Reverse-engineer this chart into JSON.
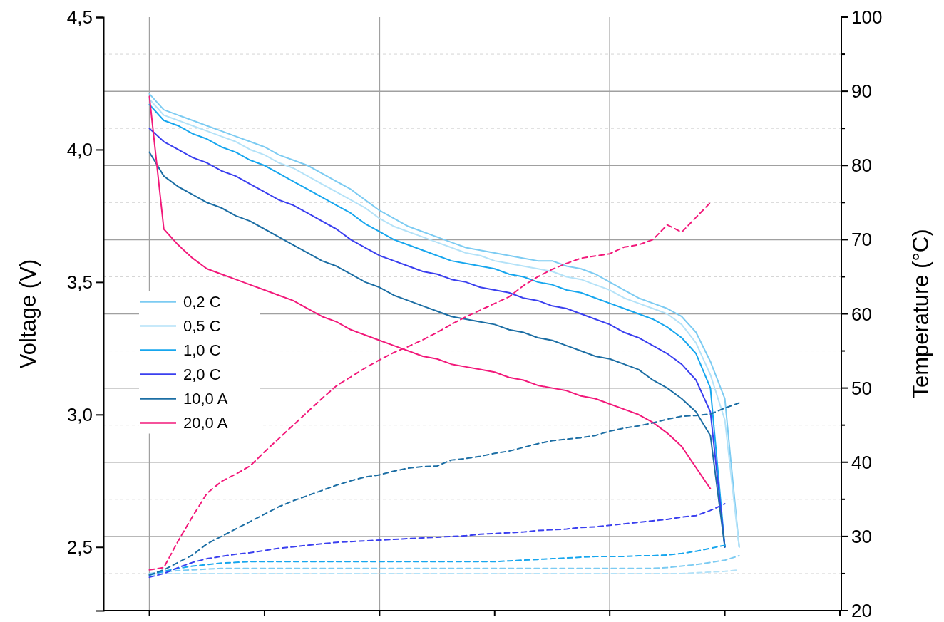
{
  "chart_data": {
    "type": "line",
    "xlabel": null,
    "ylabel": "Voltage (V)",
    "y2label": "Temperature (°C)",
    "categories": [
      null,
      null,
      null,
      null,
      null,
      null,
      null,
      null,
      null,
      null,
      null,
      null,
      null,
      null,
      null,
      null,
      null,
      null,
      null,
      null,
      null,
      null,
      null,
      null,
      null,
      null,
      null,
      null,
      null,
      null,
      null,
      null,
      null,
      null,
      null,
      null,
      null,
      null,
      null,
      null,
      null,
      null,
      null,
      null,
      null,
      null,
      null,
      null,
      null
    ],
    "ylim": [
      2.26,
      4.5
    ],
    "yticks": [
      {
        "value": 2.5,
        "label": "2,5"
      },
      {
        "value": 3.0,
        "label": "3,0"
      },
      {
        "value": 3.5,
        "label": "3,5"
      },
      {
        "value": 4.0,
        "label": "4,0"
      },
      {
        "value": 4.5,
        "label": "4,5"
      }
    ],
    "y2lim": [
      20,
      100
    ],
    "y2ticks": [
      20,
      {
        "value": 25,
        "label": null
      },
      30,
      {
        "value": 35,
        "label": null
      },
      40,
      {
        "value": 45,
        "label": null
      },
      50,
      {
        "value": 55,
        "label": null
      },
      60,
      {
        "value": 65,
        "label": null
      },
      70,
      {
        "value": 75,
        "label": null
      },
      80,
      {
        "value": 85,
        "label": null
      },
      90,
      {
        "value": 95,
        "label": null
      },
      100
    ],
    "grid": true,
    "legend": "left",
    "series": [
      {
        "name": "0,2 C",
        "color": "#7ccbf2",
        "values": [
          4.21,
          4.15,
          4.13,
          4.11,
          4.09,
          4.07,
          4.05,
          4.03,
          4.01,
          3.98,
          3.96,
          3.94,
          3.91,
          3.88,
          3.85,
          3.81,
          3.77,
          3.74,
          3.71,
          3.69,
          3.67,
          3.65,
          3.63,
          3.62,
          3.61,
          3.6,
          3.59,
          3.58,
          3.58,
          3.56,
          3.55,
          3.53,
          3.5,
          3.47,
          3.44,
          3.42,
          3.4,
          3.37,
          3.31,
          3.2,
          3.06,
          2.5,
          null,
          null,
          null,
          null,
          null,
          null,
          null
        ]
      },
      {
        "name": "0,5 C",
        "color": "#b4e2f8",
        "values": [
          4.19,
          4.13,
          4.11,
          4.09,
          4.07,
          4.05,
          4.03,
          4.0,
          3.98,
          3.95,
          3.93,
          3.9,
          3.87,
          3.84,
          3.81,
          3.78,
          3.74,
          3.71,
          3.69,
          3.67,
          3.65,
          3.63,
          3.61,
          3.6,
          3.58,
          3.57,
          3.56,
          3.55,
          3.54,
          3.52,
          3.51,
          3.49,
          3.47,
          3.44,
          3.42,
          3.4,
          3.38,
          3.34,
          3.27,
          3.15,
          2.98,
          2.5,
          null,
          null,
          null,
          null,
          null,
          null,
          null
        ]
      },
      {
        "name": "1,0 C",
        "color": "#16a6ee",
        "values": [
          4.17,
          4.11,
          4.09,
          4.06,
          4.04,
          4.01,
          3.99,
          3.96,
          3.94,
          3.91,
          3.88,
          3.85,
          3.82,
          3.79,
          3.76,
          3.72,
          3.69,
          3.66,
          3.64,
          3.62,
          3.6,
          3.58,
          3.57,
          3.56,
          3.55,
          3.53,
          3.52,
          3.5,
          3.49,
          3.47,
          3.46,
          3.44,
          3.42,
          3.4,
          3.38,
          3.36,
          3.33,
          3.29,
          3.23,
          3.1,
          2.5,
          null,
          null,
          null,
          null,
          null,
          null,
          null,
          null
        ]
      },
      {
        "name": "2,0 C",
        "color": "#3a3fef",
        "values": [
          4.08,
          4.03,
          4.0,
          3.97,
          3.95,
          3.92,
          3.9,
          3.87,
          3.84,
          3.81,
          3.79,
          3.76,
          3.73,
          3.7,
          3.66,
          3.63,
          3.6,
          3.58,
          3.56,
          3.54,
          3.53,
          3.51,
          3.5,
          3.48,
          3.47,
          3.46,
          3.44,
          3.43,
          3.41,
          3.4,
          3.38,
          3.36,
          3.34,
          3.31,
          3.29,
          3.26,
          3.23,
          3.19,
          3.13,
          3.01,
          2.5,
          null,
          null,
          null,
          null,
          null,
          null,
          null,
          null
        ]
      },
      {
        "name": "10,0 A",
        "color": "#1c6ea4",
        "values": [
          3.99,
          3.9,
          3.86,
          3.83,
          3.8,
          3.78,
          3.75,
          3.73,
          3.7,
          3.67,
          3.64,
          3.61,
          3.58,
          3.56,
          3.53,
          3.5,
          3.48,
          3.45,
          3.43,
          3.41,
          3.39,
          3.37,
          3.36,
          3.35,
          3.34,
          3.32,
          3.31,
          3.29,
          3.28,
          3.26,
          3.24,
          3.22,
          3.21,
          3.19,
          3.17,
          3.13,
          3.1,
          3.06,
          3.01,
          2.92,
          2.5,
          null,
          null,
          null,
          null,
          null,
          null,
          null,
          null
        ]
      },
      {
        "name": "20,0 A",
        "color": "#f2197a",
        "values": [
          4.2,
          3.7,
          3.64,
          3.59,
          3.55,
          3.53,
          3.51,
          3.49,
          3.47,
          3.45,
          3.43,
          3.4,
          3.37,
          3.35,
          3.32,
          3.3,
          3.28,
          3.26,
          3.24,
          3.22,
          3.21,
          3.19,
          3.18,
          3.17,
          3.16,
          3.14,
          3.13,
          3.11,
          3.1,
          3.09,
          3.07,
          3.06,
          3.04,
          3.02,
          3.0,
          2.97,
          2.93,
          2.88,
          2.8,
          2.72,
          null,
          null,
          null,
          null,
          null,
          null,
          null,
          null,
          null
        ]
      },
      {
        "color": "#7ccbf2",
        "axis": "y2",
        "line_style": "dashed",
        "values": [
          25,
          25.2,
          25.4,
          25.5,
          25.6,
          25.7,
          25.7,
          25.7,
          25.7,
          25.7,
          25.7,
          25.7,
          25.7,
          25.7,
          25.7,
          25.7,
          25.7,
          25.7,
          25.7,
          25.7,
          25.7,
          25.7,
          25.7,
          25.7,
          25.7,
          25.7,
          25.7,
          25.7,
          25.7,
          25.7,
          25.7,
          25.7,
          25.7,
          25.7,
          25.7,
          25.7,
          25.8,
          26,
          26.2,
          26.5,
          26.8,
          27.4,
          null,
          null,
          null,
          null,
          null,
          null,
          null
        ]
      },
      {
        "color": "#b4e2f8",
        "axis": "y2",
        "line_style": "dashed",
        "values": [
          24.8,
          25,
          25,
          25,
          25,
          25,
          25,
          25,
          25,
          25,
          25,
          25,
          25,
          25,
          25,
          25,
          25,
          25,
          25,
          25,
          25,
          25,
          25,
          25,
          25,
          25,
          25,
          25,
          25,
          25,
          25,
          25,
          25,
          25,
          25,
          25,
          25,
          25,
          25.1,
          25.2,
          25.3,
          25.5,
          null,
          null,
          null,
          null,
          null,
          null,
          null
        ]
      },
      {
        "color": "#16a6ee",
        "axis": "y2",
        "line_style": "dashed",
        "values": [
          24.8,
          25.3,
          25.7,
          26,
          26.2,
          26.4,
          26.5,
          26.6,
          26.6,
          26.6,
          26.6,
          26.6,
          26.6,
          26.6,
          26.6,
          26.6,
          26.6,
          26.6,
          26.6,
          26.6,
          26.6,
          26.6,
          26.6,
          26.6,
          26.6,
          26.7,
          26.8,
          26.9,
          27.0,
          27.1,
          27.2,
          27.3,
          27.3,
          27.3,
          27.4,
          27.4,
          27.5,
          27.7,
          28,
          28.4,
          28.8,
          null,
          null,
          null,
          null,
          null,
          null,
          null,
          null
        ]
      },
      {
        "color": "#3a3fef",
        "axis": "y2",
        "line_style": "dashed",
        "values": [
          24.5,
          25,
          25.8,
          26.5,
          27,
          27.3,
          27.6,
          27.8,
          28.1,
          28.4,
          28.6,
          28.8,
          29,
          29.2,
          29.3,
          29.4,
          29.5,
          29.6,
          29.7,
          29.8,
          29.9,
          30,
          30.1,
          30.3,
          30.4,
          30.5,
          30.6,
          30.8,
          30.9,
          31,
          31.2,
          31.3,
          31.5,
          31.7,
          31.9,
          32.1,
          32.3,
          32.6,
          32.8,
          33.5,
          34.4,
          null,
          null,
          null,
          null,
          null,
          null,
          null,
          null
        ]
      },
      {
        "color": "#1c6ea4",
        "axis": "y2",
        "line_style": "dashed",
        "values": [
          24.8,
          25.5,
          26.5,
          27.5,
          29,
          30,
          31,
          32,
          33,
          34,
          34.8,
          35.5,
          36.2,
          36.9,
          37.5,
          38,
          38.3,
          38.8,
          39.2,
          39.4,
          39.5,
          40.3,
          40.5,
          40.8,
          41.2,
          41.5,
          42,
          42.5,
          42.9,
          43.1,
          43.3,
          43.6,
          44.2,
          44.6,
          44.9,
          45.3,
          45.8,
          46.2,
          46.3,
          46.5,
          47.3,
          48,
          null,
          null,
          null,
          null,
          null,
          null,
          null
        ]
      },
      {
        "color": "#f2197a",
        "axis": "y2",
        "line_style": "dashed",
        "values": [
          25.5,
          25.8,
          29.4,
          32.7,
          35.8,
          37.4,
          38.4,
          39.5,
          41.4,
          43.2,
          45,
          46.8,
          48.6,
          50.3,
          51.5,
          52.7,
          53.8,
          54.8,
          55.6,
          56.5,
          57.5,
          58.6,
          59.6,
          60.5,
          61.4,
          62.3,
          63.8,
          65,
          66,
          66.8,
          67.5,
          67.8,
          68.1,
          69,
          69.3,
          70,
          72,
          71,
          73,
          75,
          null,
          null,
          null,
          null,
          null,
          null,
          null,
          null,
          null
        ]
      }
    ]
  }
}
